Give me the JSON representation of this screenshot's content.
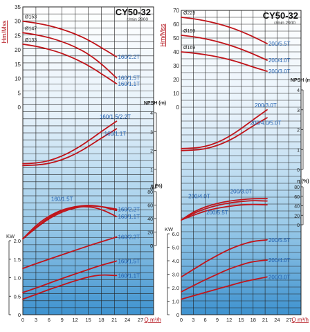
{
  "chart_data": [
    {
      "type": "line",
      "title": "CY50-32",
      "subtitle": "r/min 2900",
      "head_axis": {
        "label": "Hm/Mss",
        "ticks": [
          "0",
          "5",
          "10",
          "15",
          "20",
          "25",
          "30",
          "35"
        ],
        "ylim": [
          0,
          35
        ]
      },
      "npsh_axis": {
        "label": "NPSH (m)",
        "ticks": [
          "0",
          "1",
          "2",
          "3",
          "4"
        ],
        "ylim": [
          0,
          4
        ]
      },
      "eff_axis": {
        "label": "η (%)",
        "ticks": [
          "0",
          "20",
          "40",
          "60",
          "80"
        ],
        "ylim": [
          0,
          80
        ]
      },
      "power_axis": {
        "label": "KW",
        "ticks": [
          "0",
          "0.5",
          "1.0",
          "1.5",
          "2.0"
        ],
        "ylim": [
          0,
          2.0
        ]
      },
      "x_axis": {
        "label": "Q m³/h",
        "ticks": [
          "0",
          "3",
          "6",
          "9",
          "12",
          "15",
          "18",
          "21",
          "24",
          "27"
        ],
        "xlim": [
          0,
          30
        ]
      },
      "diameters": [
        "Ø153",
        "Ø147",
        "Ø133"
      ],
      "head": [
        {
          "name": "160/2.2T",
          "x": [
            0,
            3,
            6,
            9,
            12,
            15,
            18,
            21.5
          ],
          "y": [
            30,
            29.4,
            28.5,
            27.2,
            25.6,
            23.5,
            20.8,
            17.6
          ]
        },
        {
          "name": "160/1.5T",
          "x": [
            0,
            3,
            6,
            9,
            12,
            15,
            18,
            21.5
          ],
          "y": [
            26,
            25.3,
            24.3,
            22.9,
            21.1,
            18.6,
            15.2,
            10.2
          ]
        },
        {
          "name": "160/1.1T",
          "x": [
            0,
            3,
            6,
            9,
            12,
            15,
            18,
            21.5
          ],
          "y": [
            22,
            21.3,
            20.2,
            18.8,
            16.9,
            14.6,
            11.7,
            8.2
          ]
        }
      ],
      "npsh": [
        {
          "name": "160/1.5/2.2T",
          "x": [
            0,
            3,
            6,
            9,
            12,
            15,
            18,
            21.5
          ],
          "y": [
            1.3,
            1.32,
            1.45,
            1.7,
            2.05,
            2.5,
            3.0,
            3.55
          ]
        },
        {
          "name": "160/1.1T",
          "x": [
            0,
            3,
            6,
            9,
            12,
            15,
            18,
            21.5
          ],
          "y": [
            1.2,
            1.22,
            1.3,
            1.5,
            1.8,
            2.2,
            2.65,
            3.15
          ]
        }
      ],
      "efficiency": [
        {
          "name": "160/1.5T",
          "x": [
            0,
            3,
            6,
            9,
            12,
            15,
            18,
            21.5
          ],
          "y": [
            10,
            30,
            44,
            53,
            58,
            60,
            58,
            52
          ]
        },
        {
          "name": "160/2.2T",
          "x": [
            0,
            3,
            6,
            9,
            12,
            15,
            18,
            21.5
          ],
          "y": [
            10,
            26,
            40,
            50,
            56,
            59,
            58,
            54
          ]
        },
        {
          "name": "160/1.1T",
          "x": [
            0,
            3,
            6,
            9,
            12,
            15,
            18,
            21.5
          ],
          "y": [
            10,
            27,
            42,
            52,
            57,
            58,
            54,
            43
          ]
        }
      ],
      "power": [
        {
          "name": "160/2.2T",
          "x": [
            0,
            3,
            6,
            9,
            12,
            15,
            18,
            21.5
          ],
          "y": [
            1.25,
            1.38,
            1.5,
            1.62,
            1.74,
            1.86,
            1.97,
            2.1
          ]
        },
        {
          "name": "160/1.5T",
          "x": [
            0,
            3,
            6,
            9,
            12,
            15,
            18,
            21.5
          ],
          "y": [
            0.6,
            0.72,
            0.85,
            0.98,
            1.1,
            1.22,
            1.34,
            1.45
          ]
        },
        {
          "name": "160/1.1T",
          "x": [
            0,
            3,
            6,
            9,
            12,
            15,
            18,
            21.5
          ],
          "y": [
            0.42,
            0.55,
            0.68,
            0.8,
            0.92,
            1.02,
            1.08,
            1.06
          ]
        }
      ]
    },
    {
      "type": "line",
      "title": "CY50-32",
      "subtitle": "r/min 2900",
      "head_axis": {
        "label": "Hm/Mss",
        "ticks": [
          "0",
          "10",
          "20",
          "30",
          "40",
          "50",
          "60",
          "70"
        ],
        "ylim": [
          0,
          70
        ]
      },
      "npsh_axis": {
        "label": "NPSH (m)",
        "ticks": [
          "0",
          "1",
          "2",
          "3",
          "4"
        ],
        "ylim": [
          0,
          4
        ]
      },
      "eff_axis": {
        "label": "η (%)",
        "ticks": [
          "0",
          "20",
          "40",
          "60",
          "80"
        ],
        "ylim": [
          0,
          80
        ]
      },
      "power_axis": {
        "label": "KW",
        "ticks": [
          "0",
          "1.0",
          "2.0",
          "3.0",
          "4.0",
          "5.0",
          "6.0"
        ],
        "ylim": [
          0,
          6.0
        ]
      },
      "x_axis": {
        "label": "Q m³/h",
        "ticks": [
          "0",
          "3",
          "6",
          "9",
          "12",
          "15",
          "18",
          "21",
          "24",
          "27"
        ],
        "xlim": [
          0,
          30
        ]
      },
      "diameters": [
        "Ø223",
        "Ø199",
        "Ø169"
      ],
      "head": [
        {
          "name": "200/5.5T",
          "x": [
            0,
            3,
            6,
            9,
            12,
            15,
            18,
            21.5
          ],
          "y": [
            65,
            64,
            62.5,
            60.5,
            58,
            54.8,
            51,
            46
          ]
        },
        {
          "name": "200/4.0T",
          "x": [
            0,
            3,
            6,
            9,
            12,
            15,
            18,
            21.5
          ],
          "y": [
            52,
            51,
            49.5,
            47.5,
            45,
            42,
            38.5,
            34
          ]
        },
        {
          "name": "200/3.0T",
          "x": [
            0,
            3,
            6,
            9,
            12,
            15,
            18,
            21.5
          ],
          "y": [
            40,
            39.2,
            38,
            36.5,
            34.5,
            32,
            29,
            26
          ]
        }
      ],
      "npsh": [
        {
          "name": "200/3.0T",
          "x": [
            0,
            3,
            6,
            9,
            12,
            15,
            18,
            21.5
          ],
          "y": [
            1.05,
            1.07,
            1.15,
            1.35,
            1.65,
            2.05,
            2.5,
            3.0
          ]
        },
        {
          "name": "200/4.0/5.0T",
          "x": [
            0,
            3,
            6,
            9,
            12,
            15,
            18,
            21.5
          ],
          "y": [
            0.95,
            0.97,
            1.03,
            1.2,
            1.45,
            1.8,
            2.2,
            2.6
          ]
        }
      ],
      "efficiency": [
        {
          "name": "200/3.0T",
          "x": [
            0,
            3,
            6,
            9,
            12,
            15,
            18,
            21.5
          ],
          "y": [
            10,
            27,
            38,
            45,
            50,
            53,
            55,
            55
          ]
        },
        {
          "name": "200/4.0T",
          "x": [
            0,
            3,
            6,
            9,
            12,
            15,
            18,
            21.5
          ],
          "y": [
            10,
            24,
            34,
            41,
            46,
            49,
            51,
            50
          ]
        },
        {
          "name": "200/5.5T",
          "x": [
            0,
            3,
            6,
            9,
            12,
            15,
            18,
            21.5
          ],
          "y": [
            10,
            20,
            29,
            35,
            39,
            42,
            43,
            42
          ]
        }
      ],
      "power": [
        {
          "name": "200/5.5T",
          "x": [
            0,
            3,
            6,
            9,
            12,
            15,
            18,
            21.5
          ],
          "y": [
            2.8,
            3.35,
            3.9,
            4.4,
            4.85,
            5.2,
            5.45,
            5.55
          ]
        },
        {
          "name": "200/4.0T",
          "x": [
            0,
            3,
            6,
            9,
            12,
            15,
            18,
            21.5
          ],
          "y": [
            1.7,
            2.15,
            2.6,
            3.0,
            3.4,
            3.7,
            3.95,
            4.05
          ]
        },
        {
          "name": "200/3.0T",
          "x": [
            0,
            3,
            6,
            9,
            12,
            15,
            18,
            21.5
          ],
          "y": [
            1.15,
            1.4,
            1.65,
            1.9,
            2.15,
            2.4,
            2.6,
            2.8
          ]
        }
      ]
    }
  ],
  "colors": {
    "curve": "#c0151b",
    "axis": "#b3121a",
    "label": "#1f5fb0",
    "grid": "#222222"
  }
}
